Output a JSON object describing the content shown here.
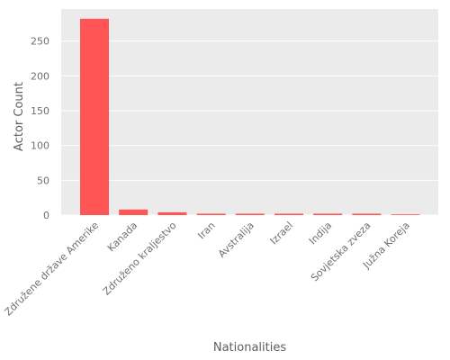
{
  "chart_data": {
    "type": "bar",
    "title": "",
    "xlabel": "Nationalities",
    "ylabel": "Actor Count",
    "categories": [
      "Združene države Amerike",
      "Kanada",
      "Združeno kraljestvo",
      "Iran",
      "Avstralija",
      "Izrael",
      "Indija",
      "Sovjetska zveza",
      "Južna Koreja"
    ],
    "values": [
      282,
      8,
      4,
      2,
      2,
      2,
      2,
      2,
      1
    ],
    "ylim": [
      0,
      296
    ],
    "yticks": [
      0,
      50,
      100,
      150,
      200,
      250
    ],
    "grid": true,
    "legend": "none",
    "colors": {
      "bar": "#ff5555",
      "background": "#ebebeb",
      "grid": "#ffffff"
    }
  }
}
